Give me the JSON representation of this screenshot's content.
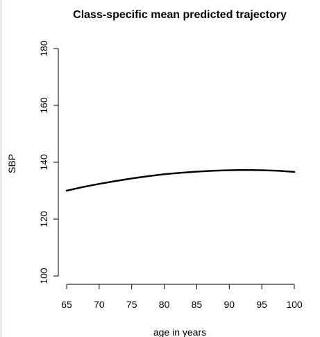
{
  "chart_data": {
    "type": "line",
    "title": "Class-specific mean predicted trajectory",
    "xlabel": "age in years",
    "ylabel": "SBP",
    "xlim": [
      65,
      100
    ],
    "ylim": [
      100,
      180
    ],
    "xticks": [
      65,
      70,
      75,
      80,
      85,
      90,
      95,
      100
    ],
    "yticks": [
      100,
      120,
      140,
      160,
      180
    ],
    "grid": false,
    "series": [
      {
        "color": "#000000",
        "x": [
          65,
          67.5,
          70,
          72.5,
          75,
          77.5,
          80,
          82.5,
          85,
          87.5,
          90,
          92.5,
          95,
          97.5,
          100
        ],
        "y": [
          130.0,
          131.3,
          132.4,
          133.4,
          134.3,
          135.1,
          135.8,
          136.3,
          136.7,
          137.0,
          137.2,
          137.3,
          137.2,
          137.0,
          136.6
        ]
      }
    ]
  }
}
